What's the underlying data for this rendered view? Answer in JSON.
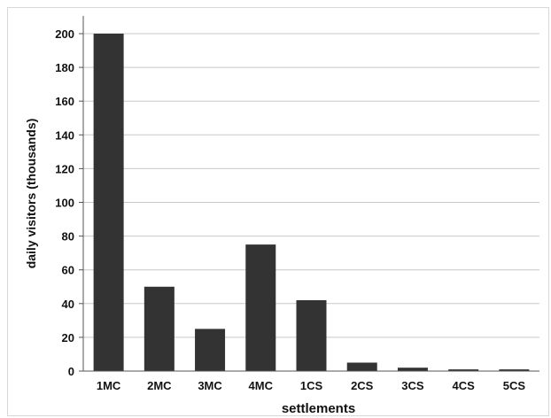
{
  "chart_data": {
    "type": "bar",
    "categories": [
      "1MC",
      "2MC",
      "3MC",
      "4MC",
      "1CS",
      "2CS",
      "3CS",
      "4CS",
      "5CS"
    ],
    "values": [
      200,
      50,
      25,
      75,
      42,
      5,
      2,
      1,
      1
    ],
    "xlabel": "settlements",
    "ylabel": "daily visitors (thousands)",
    "ylim": [
      0,
      200
    ],
    "yticks": [
      "0",
      "20",
      "40",
      "60",
      "80",
      "100",
      "120",
      "140",
      "160",
      "180",
      "200"
    ],
    "grid": true,
    "legend": "none",
    "bar_color": "#333333",
    "grid_color": "#c8c8c8"
  }
}
